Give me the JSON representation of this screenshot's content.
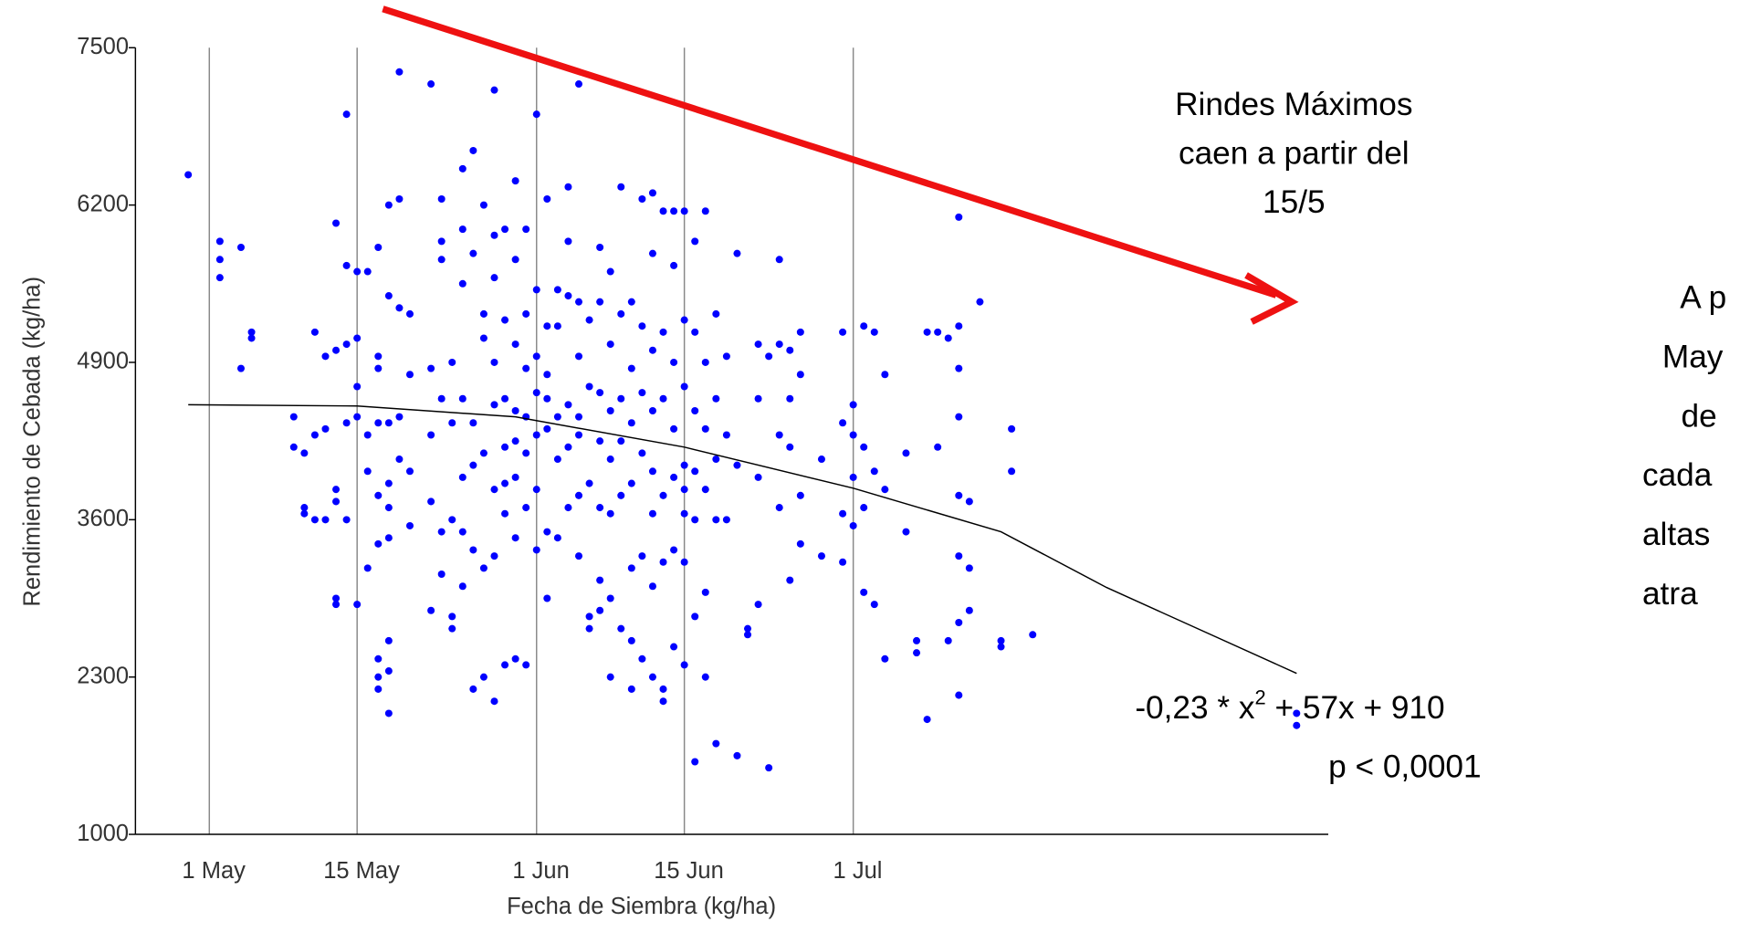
{
  "chart_data": {
    "type": "scatter",
    "xlabel": "Fecha de Siembra (kg/ha)",
    "ylabel": "Rendimiento de Cebada (kg/ha)",
    "xlim": [
      114,
      227
    ],
    "ylim": [
      1000,
      7500
    ],
    "xticks": [
      {
        "value": 121,
        "label": "1 May"
      },
      {
        "value": 135,
        "label": "15 May"
      },
      {
        "value": 152,
        "label": "1 Jun"
      },
      {
        "value": 166,
        "label": "15 Jun"
      },
      {
        "value": 182,
        "label": "1 Jul"
      }
    ],
    "yticks": [
      1000,
      2300,
      3600,
      4900,
      6200,
      7500
    ],
    "grid": "x",
    "color": "#0000ff",
    "x": [
      119,
      122,
      122,
      122,
      124,
      124,
      125,
      125,
      129,
      129,
      130,
      130,
      130,
      131,
      131,
      131,
      132,
      132,
      132,
      133,
      133,
      133,
      133,
      133,
      133,
      134,
      134,
      134,
      134,
      134,
      135,
      135,
      135,
      135,
      135,
      136,
      136,
      136,
      136,
      137,
      137,
      137,
      137,
      137,
      137,
      137,
      137,
      137,
      138,
      138,
      138,
      138,
      138,
      138,
      138,
      138,
      138,
      139,
      139,
      139,
      139,
      139,
      140,
      140,
      140,
      140,
      142,
      142,
      142,
      142,
      142,
      143,
      143,
      143,
      143,
      143,
      143,
      144,
      144,
      144,
      144,
      144,
      145,
      145,
      145,
      145,
      145,
      145,
      145,
      146,
      146,
      146,
      146,
      146,
      146,
      147,
      147,
      147,
      147,
      147,
      147,
      148,
      148,
      148,
      148,
      148,
      148,
      148,
      148,
      149,
      149,
      149,
      149,
      149,
      149,
      149,
      150,
      150,
      150,
      150,
      150,
      150,
      150,
      150,
      151,
      151,
      151,
      151,
      151,
      151,
      151,
      152,
      152,
      152,
      152,
      152,
      152,
      152,
      153,
      153,
      153,
      153,
      153,
      153,
      153,
      154,
      154,
      154,
      154,
      154,
      155,
      155,
      155,
      155,
      155,
      155,
      156,
      156,
      156,
      156,
      156,
      156,
      156,
      157,
      157,
      157,
      157,
      157,
      158,
      158,
      158,
      158,
      158,
      158,
      158,
      159,
      159,
      159,
      159,
      159,
      159,
      159,
      160,
      160,
      160,
      160,
      160,
      160,
      161,
      161,
      161,
      161,
      161,
      161,
      161,
      162,
      162,
      162,
      162,
      162,
      162,
      163,
      163,
      163,
      163,
      163,
      163,
      163,
      163,
      164,
      164,
      164,
      164,
      164,
      164,
      164,
      165,
      165,
      165,
      165,
      165,
      165,
      165,
      166,
      166,
      166,
      166,
      166,
      166,
      166,
      166,
      167,
      167,
      167,
      167,
      167,
      167,
      167,
      168,
      168,
      168,
      168,
      168,
      168,
      169,
      169,
      169,
      169,
      169,
      170,
      170,
      170,
      171,
      171,
      171,
      172,
      172,
      173,
      173,
      173,
      173,
      174,
      174,
      175,
      175,
      175,
      175,
      176,
      176,
      176,
      176,
      177,
      177,
      177,
      177,
      179,
      179,
      181,
      181,
      181,
      181,
      182,
      182,
      182,
      182,
      183,
      183,
      183,
      183,
      184,
      184,
      184,
      185,
      185,
      185,
      187,
      187,
      188,
      188,
      189,
      189,
      190,
      190,
      191,
      191,
      192,
      192,
      192,
      192,
      192,
      192,
      192,
      192,
      193,
      193,
      193,
      194,
      196,
      196,
      197,
      197,
      199,
      224,
      224
    ],
    "values": [
      6450,
      5900,
      5750,
      5600,
      4850,
      5850,
      5100,
      5150,
      4450,
      4200,
      3700,
      3650,
      4150,
      5150,
      3600,
      4300,
      3600,
      4950,
      4350,
      6050,
      5000,
      3850,
      3750,
      2950,
      2900,
      6950,
      5700,
      5050,
      4400,
      3600,
      5650,
      5100,
      4700,
      4450,
      2900,
      5650,
      4300,
      3200,
      4000,
      5850,
      4950,
      4850,
      4400,
      3800,
      3400,
      2450,
      2300,
      2200,
      6200,
      5450,
      4400,
      3900,
      3700,
      3450,
      2600,
      2350,
      2000,
      7300,
      6250,
      5350,
      4450,
      4100,
      5300,
      4800,
      4000,
      3550,
      7200,
      4850,
      4300,
      3750,
      2850,
      6250,
      5900,
      5750,
      4600,
      3500,
      3150,
      2700,
      4900,
      4400,
      3600,
      2800,
      6500,
      6000,
      5550,
      4600,
      3950,
      3500,
      3050,
      6650,
      5800,
      4400,
      4050,
      3350,
      2200,
      6200,
      5300,
      5100,
      4150,
      3200,
      2300,
      7150,
      5950,
      5600,
      4900,
      4550,
      3850,
      3300,
      2100,
      6000,
      5250,
      4600,
      4200,
      3900,
      3650,
      2400,
      6400,
      5750,
      5050,
      4500,
      4250,
      3950,
      3450,
      2450,
      6000,
      5300,
      4850,
      4450,
      4150,
      3700,
      2400,
      6950,
      5500,
      4950,
      4650,
      4300,
      3850,
      3350,
      6250,
      5200,
      4800,
      4600,
      4350,
      3500,
      2950,
      5500,
      5200,
      4450,
      4100,
      3450,
      6350,
      5900,
      5450,
      4550,
      4200,
      3700,
      7200,
      5400,
      4950,
      4450,
      4300,
      3800,
      3300,
      5250,
      4700,
      3900,
      2800,
      2700,
      5850,
      5400,
      4650,
      4250,
      3700,
      3100,
      2850,
      5650,
      5050,
      4500,
      4100,
      3650,
      2950,
      2300,
      6350,
      5300,
      4600,
      4250,
      3800,
      2700,
      5400,
      4850,
      4400,
      3900,
      3200,
      2600,
      2200,
      6250,
      5200,
      4650,
      4150,
      3300,
      2450,
      6300,
      5800,
      5000,
      4500,
      4000,
      3650,
      3050,
      2300,
      6150,
      5150,
      4600,
      3800,
      3250,
      2200,
      2100,
      6150,
      5700,
      4900,
      4350,
      3950,
      3350,
      2550,
      6150,
      5250,
      4700,
      4050,
      3850,
      3650,
      3250,
      2400,
      5900,
      5150,
      4500,
      4000,
      3600,
      2800,
      1600,
      6150,
      4900,
      4350,
      3850,
      3000,
      2300,
      5300,
      4600,
      4100,
      3600,
      1750,
      4950,
      4300,
      3600,
      5800,
      4050,
      1650,
      2700,
      2650,
      5050,
      4600,
      3950,
      2900,
      1550,
      4950,
      5750,
      5050,
      4300,
      3700,
      5000,
      4600,
      4200,
      3100,
      5150,
      4800,
      3800,
      3400,
      4100,
      3300,
      5150,
      4400,
      3650,
      3250,
      4550,
      4300,
      3950,
      3550,
      5200,
      4200,
      3700,
      3000,
      5150,
      4000,
      2900,
      4800,
      3850,
      2450,
      4150,
      3500,
      2600,
      2500,
      5150,
      1950,
      5150,
      4200,
      5100,
      2600,
      5200,
      6100,
      4850,
      4450,
      3800,
      3300,
      2750,
      2150,
      3750,
      3200,
      2850,
      5400,
      2600,
      2550,
      4350,
      4000,
      2650,
      2000,
      1900
    ],
    "fit": {
      "color": "#000000",
      "x": [
        119,
        135,
        150,
        166,
        182,
        196,
        206,
        224
      ],
      "values": [
        4550,
        4540,
        4450,
        4200,
        3860,
        3500,
        3040,
        2330
      ]
    },
    "annotation_lines": [
      "Rindes Máximos",
      "caen a partir del",
      "15/5"
    ],
    "side_text": [
      "A p",
      "May",
      "de",
      "cada",
      "altas",
      "atra"
    ],
    "equation_parts": [
      "-0,23 * x",
      "2",
      " + 57x + 910"
    ],
    "p_value": "p < 0,0001"
  }
}
